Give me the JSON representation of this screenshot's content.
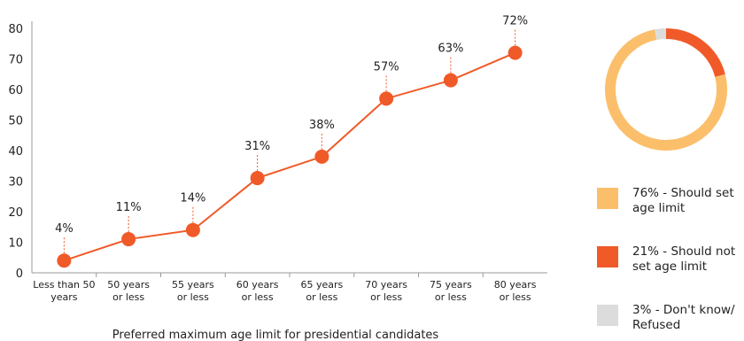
{
  "chart_data": [
    {
      "type": "line",
      "title": "",
      "xlabel": "Preferred maximum age limit for presidential candidates",
      "ylabel": "",
      "ylim": [
        0,
        80
      ],
      "yticks": [
        "0",
        "10",
        "20",
        "30",
        "40",
        "50",
        "60",
        "70",
        "80"
      ],
      "categories": [
        "Less than 50\nyears",
        "50 years\nor less",
        "55 years\nor less",
        "60 years\nor less",
        "65 years\nor less",
        "70 years\nor less",
        "75 years\nor less",
        "80 years\nor less"
      ],
      "values": [
        4,
        11,
        14,
        31,
        38,
        57,
        63,
        72
      ],
      "data_labels": [
        "4%",
        "11%",
        "14%",
        "31%",
        "38%",
        "57%",
        "63%",
        "72%"
      ],
      "color": "#f05a28",
      "grid": false
    },
    {
      "type": "pie",
      "donut": true,
      "slices": [
        {
          "label": "76% - Should set\nage limit",
          "value": 76,
          "color": "#fbbf6b"
        },
        {
          "label": "21% - Should not\nset age limit",
          "value": 21,
          "color": "#f05a28"
        },
        {
          "label": "3% - Don't know/\nRefused",
          "value": 3,
          "color": "#dcdcdc"
        }
      ],
      "legend_position": "bottom-right"
    }
  ]
}
